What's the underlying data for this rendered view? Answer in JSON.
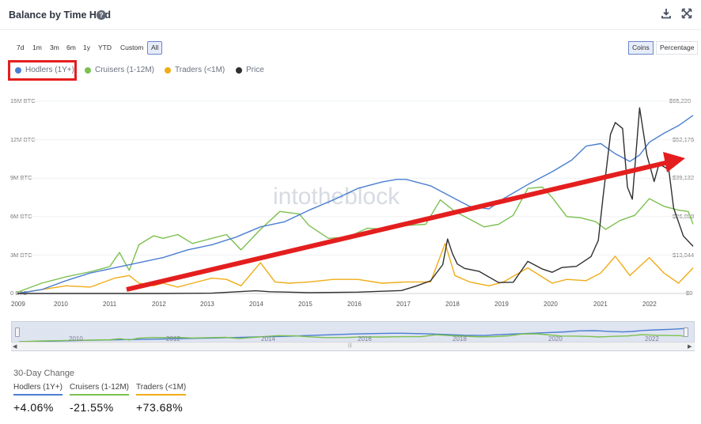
{
  "header": {
    "title": "Balance by Time Held",
    "help_glyph": "?",
    "download_icon": "download-icon",
    "fullscreen_icon": "fullscreen-icon"
  },
  "ranges": [
    "7d",
    "1m",
    "3m",
    "6m",
    "1y",
    "YTD",
    "Custom",
    "All"
  ],
  "active_range": "All",
  "modes": [
    "Coins",
    "Percentage"
  ],
  "active_mode": "Coins",
  "legend": [
    {
      "label": "Hodlers (1Y+)",
      "color": "#4a7fd0"
    },
    {
      "label": "Cruisers (1-12M)",
      "color": "#7cc04f"
    },
    {
      "label": "Traders (<1M)",
      "color": "#f0ac17"
    },
    {
      "label": "Price",
      "color": "#2f2f2f"
    }
  ],
  "watermark": "intotheblock",
  "navigator_years": [
    "2010",
    "2012",
    "2014",
    "2016",
    "2018",
    "2020",
    "2022"
  ],
  "changes": {
    "title": "30-Day Change",
    "items": [
      {
        "label": "Hodlers (1Y+)",
        "value": "+4.06%",
        "color": "#4a7fd0"
      },
      {
        "label": "Cruisers (1-12M)",
        "value": "-21.55%",
        "color": "#7cc04f"
      },
      {
        "label": "Traders (<1M)",
        "value": "+73.68%",
        "color": "#f0ac17"
      }
    ]
  },
  "chart_data": {
    "type": "line",
    "title": "Balance by Time Held",
    "left_axis": {
      "ticks": [
        "0 BTC",
        "3M BTC",
        "6M BTC",
        "9M BTC",
        "12M BTC",
        "15M BTC"
      ],
      "ylim": [
        0,
        15000000
      ]
    },
    "right_axis": {
      "ticks": [
        "$0",
        "$13,044",
        "$26,088",
        "$39,132",
        "$52,176",
        "$65,220"
      ],
      "ylim": [
        0,
        65220
      ]
    },
    "x_ticks": [
      "2009",
      "2010",
      "2011",
      "2012",
      "2013",
      "2014",
      "2015",
      "2016",
      "2017",
      "2018",
      "2019",
      "2020",
      "2021",
      "2022"
    ],
    "xlim": [
      2009.0,
      2022.9
    ],
    "grid": true,
    "legend_position": "top-left",
    "series": [
      {
        "name": "Hodlers (1Y+)",
        "axis": "left",
        "x": [
          2009.0,
          2009.5,
          2010.0,
          2010.5,
          2011.0,
          2011.5,
          2012.0,
          2012.5,
          2013.0,
          2013.5,
          2014.0,
          2014.5,
          2015.0,
          2015.5,
          2016.0,
          2016.5,
          2016.8,
          2017.0,
          2017.5,
          2018.0,
          2018.3,
          2018.7,
          2019.0,
          2019.5,
          2020.0,
          2020.4,
          2020.7,
          2021.0,
          2021.3,
          2021.6,
          2021.8,
          2022.0,
          2022.3,
          2022.6,
          2022.9
        ],
        "y": [
          0.0,
          0.3,
          1.0,
          1.6,
          2.0,
          2.4,
          2.8,
          3.4,
          3.8,
          4.4,
          5.2,
          5.6,
          6.5,
          7.3,
          8.2,
          8.7,
          8.9,
          8.9,
          8.4,
          7.4,
          6.8,
          6.6,
          7.4,
          8.5,
          9.5,
          10.4,
          11.5,
          11.7,
          10.9,
          10.3,
          10.8,
          11.8,
          12.5,
          13.1,
          13.9
        ]
      },
      {
        "name": "Cruisers (1-12M)",
        "axis": "left",
        "x": [
          2009.0,
          2009.5,
          2010.0,
          2010.5,
          2010.9,
          2011.1,
          2011.3,
          2011.5,
          2011.8,
          2012.0,
          2012.3,
          2012.6,
          2013.0,
          2013.3,
          2013.6,
          2014.0,
          2014.4,
          2014.8,
          2015.0,
          2015.4,
          2015.8,
          2016.2,
          2016.6,
          2017.0,
          2017.4,
          2017.7,
          2018.0,
          2018.3,
          2018.6,
          2018.9,
          2019.2,
          2019.5,
          2019.8,
          2020.0,
          2020.3,
          2020.6,
          2020.9,
          2021.1,
          2021.4,
          2021.7,
          2022.0,
          2022.3,
          2022.6,
          2022.8,
          2022.9
        ],
        "y": [
          0.1,
          0.8,
          1.3,
          1.7,
          2.1,
          3.2,
          1.8,
          3.8,
          4.5,
          4.3,
          4.6,
          3.9,
          4.3,
          4.6,
          3.4,
          5.0,
          6.4,
          6.2,
          5.3,
          4.3,
          4.4,
          5.1,
          5.0,
          5.3,
          5.4,
          7.3,
          6.4,
          5.8,
          5.2,
          5.4,
          6.1,
          8.2,
          8.3,
          7.5,
          6.0,
          5.9,
          5.6,
          5.0,
          5.7,
          6.1,
          7.4,
          6.8,
          6.5,
          6.4,
          5.4
        ]
      },
      {
        "name": "Traders (<1M)",
        "axis": "left",
        "x": [
          2009.0,
          2009.5,
          2010.0,
          2010.5,
          2011.0,
          2011.3,
          2011.5,
          2011.8,
          2012.0,
          2012.3,
          2012.6,
          2013.0,
          2013.3,
          2013.6,
          2014.0,
          2014.3,
          2014.6,
          2015.0,
          2015.5,
          2016.0,
          2016.5,
          2017.0,
          2017.5,
          2017.8,
          2018.0,
          2018.3,
          2018.7,
          2019.0,
          2019.5,
          2020.0,
          2020.3,
          2020.7,
          2021.0,
          2021.3,
          2021.6,
          2022.0,
          2022.3,
          2022.6,
          2022.9
        ],
        "y": [
          0.0,
          0.3,
          0.6,
          0.5,
          1.2,
          1.4,
          0.8,
          0.6,
          0.8,
          0.5,
          0.8,
          1.2,
          1.1,
          0.6,
          2.4,
          0.9,
          0.8,
          0.9,
          1.1,
          1.1,
          0.8,
          0.9,
          0.9,
          3.9,
          1.4,
          0.9,
          0.6,
          0.9,
          2.0,
          0.8,
          1.1,
          1.0,
          1.6,
          2.9,
          1.4,
          2.8,
          1.6,
          0.8,
          2.0
        ]
      },
      {
        "name": "Price",
        "axis": "right",
        "x": [
          2009.0,
          2012.0,
          2013.0,
          2013.9,
          2014.2,
          2015.0,
          2016.0,
          2016.9,
          2017.2,
          2017.5,
          2017.75,
          2017.85,
          2017.95,
          2018.05,
          2018.2,
          2018.5,
          2018.9,
          2019.2,
          2019.5,
          2019.8,
          2020.0,
          2020.2,
          2020.5,
          2020.8,
          2020.95,
          2021.05,
          2021.2,
          2021.3,
          2021.45,
          2021.55,
          2021.65,
          2021.8,
          2021.95,
          2022.1,
          2022.2,
          2022.4,
          2022.5,
          2022.7,
          2022.9
        ],
        "y": [
          0,
          0,
          100,
          900,
          600,
          300,
          450,
          1000,
          2500,
          4300,
          9800,
          18500,
          13500,
          10000,
          8500,
          7500,
          3700,
          3800,
          10900,
          8300,
          7200,
          8800,
          9200,
          12500,
          18000,
          33000,
          54000,
          58000,
          56000,
          36000,
          32000,
          63000,
          47000,
          38000,
          44000,
          42000,
          29000,
          19500,
          16000
        ]
      }
    ]
  }
}
